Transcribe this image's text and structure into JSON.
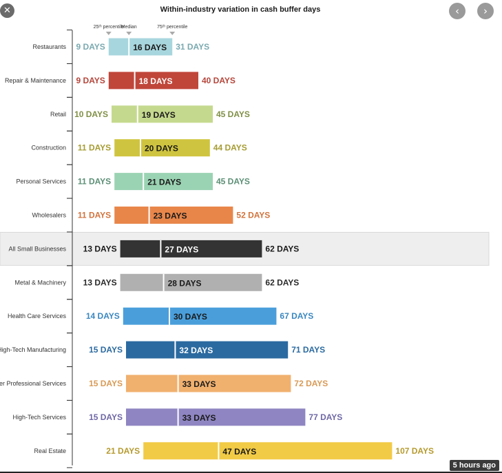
{
  "viewer": {
    "close_icon": "close-icon",
    "prev_icon": "chevron-left-icon",
    "next_icon": "chevron-right-icon",
    "close_glyph": "✕",
    "prev_glyph": "‹",
    "next_glyph": "›",
    "timestamp": "5 hours ago"
  },
  "chart_data": {
    "type": "bar",
    "title": "Within-industry variation in cash buffer days",
    "marker_labels": {
      "p25": "25ᵗʰ percentile",
      "median": "Median",
      "p75": "75ᵗʰ percentile"
    },
    "xlim": [
      0,
      110
    ],
    "highlight": "All Small Businesses",
    "rows": [
      {
        "label": "Restaurants",
        "p25": 9,
        "median": 16,
        "p75": 31,
        "p25_text": "9 DAYS",
        "median_text": "16 DAYS",
        "p75_text": "31 DAYS",
        "color": "#a8d6de",
        "text_color": "#7aa9b0",
        "median_text_color": "#1a1a1a"
      },
      {
        "label": "Repair & Maintenance",
        "p25": 9,
        "median": 18,
        "p75": 40,
        "p25_text": "9 DAYS",
        "median_text": "18 DAYS",
        "p75_text": "40 DAYS",
        "color": "#c0463a",
        "text_color": "#b5453a",
        "median_text_color": "#ffffff"
      },
      {
        "label": "Retail",
        "p25": 10,
        "median": 19,
        "p75": 45,
        "p25_text": "10 DAYS",
        "median_text": "19 DAYS",
        "p75_text": "45 DAYS",
        "color": "#c5d98e",
        "text_color": "#7f8f45",
        "median_text_color": "#1a1a1a"
      },
      {
        "label": "Construction",
        "p25": 11,
        "median": 20,
        "p75": 44,
        "p25_text": "11 DAYS",
        "median_text": "20 DAYS",
        "p75_text": "44 DAYS",
        "color": "#cfc43f",
        "text_color": "#a69c33",
        "median_text_color": "#1a1a1a"
      },
      {
        "label": "Personal Services",
        "p25": 11,
        "median": 21,
        "p75": 45,
        "p25_text": "11 DAYS",
        "median_text": "21 DAYS",
        "p75_text": "45 DAYS",
        "color": "#9ad3b3",
        "text_color": "#5c8f76",
        "median_text_color": "#1a1a1a"
      },
      {
        "label": "Wholesalers",
        "p25": 11,
        "median": 23,
        "p75": 52,
        "p25_text": "11 DAYS",
        "median_text": "23 DAYS",
        "p75_text": "52 DAYS",
        "color": "#e8864a",
        "text_color": "#d2733c",
        "median_text_color": "#1a1a1a"
      },
      {
        "label": "All Small Businesses",
        "p25": 13,
        "median": 27,
        "p75": 62,
        "p25_text": "13 DAYS",
        "median_text": "27 DAYS",
        "p75_text": "62 DAYS",
        "color": "#333333",
        "text_color": "#1a1a1a",
        "median_text_color": "#ffffff"
      },
      {
        "label": "Metal & Machinery",
        "p25": 13,
        "median": 28,
        "p75": 62,
        "p25_text": "13 DAYS",
        "median_text": "28 DAYS",
        "p75_text": "62 DAYS",
        "color": "#b0b0b0",
        "text_color": "#2a2a2a",
        "median_text_color": "#1a1a1a"
      },
      {
        "label": "Health Care Services",
        "p25": 14,
        "median": 30,
        "p75": 67,
        "p25_text": "14 DAYS",
        "median_text": "30 DAYS",
        "p75_text": "67 DAYS",
        "color": "#4a9fdb",
        "text_color": "#3a87c0",
        "median_text_color": "#1a1a1a"
      },
      {
        "label": "High-Tech Manufacturing",
        "p25": 15,
        "median": 32,
        "p75": 71,
        "p25_text": "15 DAYS",
        "median_text": "32 DAYS",
        "p75_text": "71 DAYS",
        "color": "#2b6aa0",
        "text_color": "#2b6aa0",
        "median_text_color": "#ffffff"
      },
      {
        "label": "Other Professional Services",
        "p25": 15,
        "median": 33,
        "p75": 72,
        "p25_text": "15 DAYS",
        "median_text": "33 DAYS",
        "p75_text": "72 DAYS",
        "color": "#f0b06e",
        "text_color": "#d99a55",
        "median_text_color": "#1a1a1a"
      },
      {
        "label": "High-Tech Services",
        "p25": 15,
        "median": 33,
        "p75": 77,
        "p25_text": "15 DAYS",
        "median_text": "33 DAYS",
        "p75_text": "77 DAYS",
        "color": "#8e85c2",
        "text_color": "#6e67a5",
        "median_text_color": "#1a1a1a"
      },
      {
        "label": "Real Estate",
        "p25": 21,
        "median": 47,
        "p75": 107,
        "p25_text": "21 DAYS",
        "median_text": "47 DAYS",
        "p75_text": "107 DAYS",
        "color": "#f2cb46",
        "text_color": "#b59a2e",
        "median_text_color": "#1a1a1a"
      }
    ]
  }
}
